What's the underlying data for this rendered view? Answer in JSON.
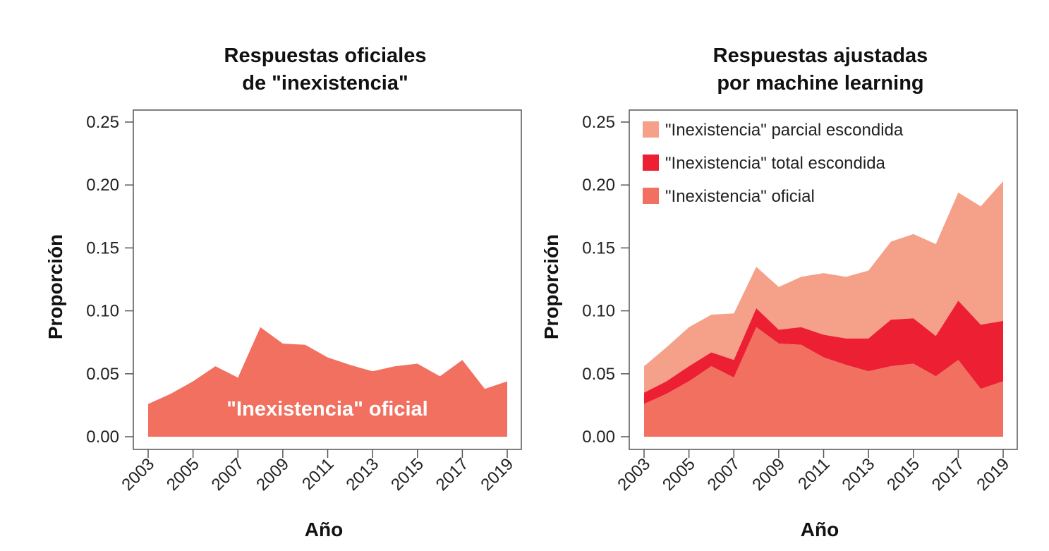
{
  "colors": {
    "oficial": "#f17060",
    "total_escondida": "#ed1f33",
    "parcial_escondida": "#f5a18a",
    "frame": "#555555"
  },
  "chart_data": [
    {
      "type": "area",
      "title_lines": [
        "Respuestas oficiales",
        "de \"inexistencia\""
      ],
      "xlabel": "Año",
      "ylabel": "Proporción",
      "ylim": [
        0,
        0.25
      ],
      "yticks": [
        "0.00",
        "0.05",
        "0.10",
        "0.15",
        "0.20",
        "0.25"
      ],
      "xticks": [
        "2003",
        "2005",
        "2007",
        "2009",
        "2011",
        "2013",
        "2015",
        "2017",
        "2019"
      ],
      "x": [
        2003,
        2004,
        2005,
        2006,
        2007,
        2008,
        2009,
        2010,
        2011,
        2012,
        2013,
        2014,
        2015,
        2016,
        2017,
        2018,
        2019
      ],
      "series": [
        {
          "name": "\"Inexistencia\" oficial",
          "color_key": "oficial",
          "values": [
            0.026,
            0.034,
            0.044,
            0.056,
            0.047,
            0.087,
            0.074,
            0.073,
            0.063,
            0.057,
            0.052,
            0.056,
            0.058,
            0.048,
            0.061,
            0.038,
            0.044
          ]
        }
      ],
      "annotation": "\"Inexistencia\" oficial",
      "legend": false
    },
    {
      "type": "area",
      "stacked": true,
      "title_lines": [
        "Respuestas ajustadas",
        "por machine learning"
      ],
      "xlabel": "Año",
      "ylabel": "Proporción",
      "ylim": [
        0,
        0.25
      ],
      "yticks": [
        "0.00",
        "0.05",
        "0.10",
        "0.15",
        "0.20",
        "0.25"
      ],
      "xticks": [
        "2003",
        "2005",
        "2007",
        "2009",
        "2011",
        "2013",
        "2015",
        "2017",
        "2019"
      ],
      "x": [
        2003,
        2004,
        2005,
        2006,
        2007,
        2008,
        2009,
        2010,
        2011,
        2012,
        2013,
        2014,
        2015,
        2016,
        2017,
        2018,
        2019
      ],
      "legend_placement": "top-left",
      "series": [
        {
          "name": "\"Inexistencia\" oficial",
          "color_key": "oficial",
          "values": [
            0.026,
            0.034,
            0.044,
            0.056,
            0.047,
            0.087,
            0.074,
            0.073,
            0.063,
            0.057,
            0.052,
            0.056,
            0.058,
            0.048,
            0.061,
            0.038,
            0.044
          ]
        },
        {
          "name": "\"Inexistencia\" total escondida",
          "color_key": "total_escondida",
          "cumulative": [
            0.035,
            0.044,
            0.056,
            0.067,
            0.061,
            0.102,
            0.085,
            0.087,
            0.081,
            0.078,
            0.078,
            0.093,
            0.094,
            0.08,
            0.108,
            0.089,
            0.092
          ]
        },
        {
          "name": "\"Inexistencia\" parcial escondida",
          "color_key": "parcial_escondida",
          "cumulative": [
            0.056,
            0.071,
            0.087,
            0.097,
            0.098,
            0.135,
            0.119,
            0.127,
            0.13,
            0.127,
            0.132,
            0.155,
            0.161,
            0.153,
            0.194,
            0.183,
            0.203
          ]
        }
      ],
      "legend_order": [
        2,
        1,
        0
      ]
    }
  ]
}
